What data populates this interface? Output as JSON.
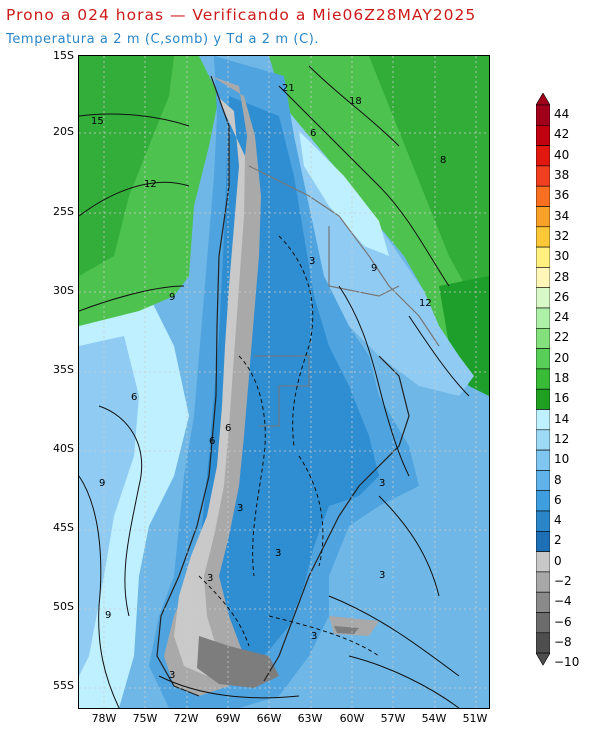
{
  "header": {
    "title": "Prono a 024 horas — Verificando a Mie06Z28MAY2025",
    "subtitle": "Temperatura a 2 m (C,somb) y Td a 2 m (C)."
  },
  "map": {
    "lat_labels": [
      "15S",
      "20S",
      "25S",
      "30S",
      "35S",
      "40S",
      "45S",
      "50S",
      "55S"
    ],
    "lon_labels": [
      "78W",
      "75W",
      "72W",
      "69W",
      "66W",
      "63W",
      "60W",
      "57W",
      "54W",
      "51W"
    ],
    "contour_labels": [
      "15",
      "12",
      "9",
      "21",
      "18",
      "6",
      "3",
      "9",
      "12",
      "6",
      "6",
      "3",
      "3",
      "3",
      "3",
      "3",
      "9",
      "3",
      "9",
      "3",
      "6",
      "8"
    ],
    "colors": {
      "green_dark": "#1e9e2a",
      "green": "#4ec24e",
      "green_light": "#87d683",
      "cyan": "#bff0ff",
      "blue_light": "#8fcbf2",
      "blue": "#6fb7e6",
      "blue_mid": "#4fa3df",
      "blue_dark": "#2f8ed2",
      "gray_light": "#c9c9c9",
      "gray": "#a9a9a9",
      "gray_dark": "#7d7d7d"
    }
  },
  "colorbar": {
    "labels": [
      "44",
      "42",
      "40",
      "38",
      "36",
      "34",
      "32",
      "30",
      "28",
      "26",
      "24",
      "22",
      "20",
      "18",
      "16",
      "14",
      "12",
      "10",
      "8",
      "6",
      "4",
      "2",
      "0",
      "−2",
      "−4",
      "−6",
      "−8",
      "−10"
    ],
    "colors": [
      "#a0001a",
      "#c00010",
      "#e01810",
      "#f04020",
      "#f87020",
      "#f8a028",
      "#fcc838",
      "#fff080",
      "#fff6b8",
      "#d8f8c8",
      "#aef0a8",
      "#84e07c",
      "#58d058",
      "#38bc38",
      "#20a020",
      "#bff0ff",
      "#9edaf6",
      "#7fc6f0",
      "#5fb2ea",
      "#3f9ee0",
      "#2a86c8",
      "#1d6fb6",
      "#c8c8c8",
      "#a8a8a8",
      "#8a8a8a",
      "#6c6c6c",
      "#4e4e4e"
    ]
  }
}
